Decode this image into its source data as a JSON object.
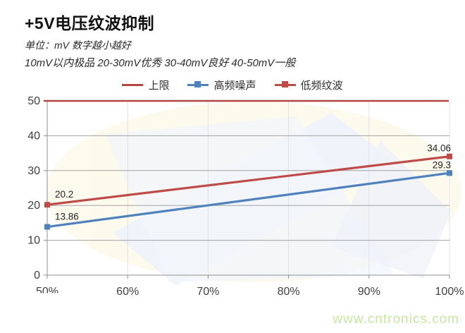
{
  "page": {
    "title": "+5V电压纹波抑制",
    "subtitle_unit": "单位：mV  数字越小越好",
    "subtitle_grades": "10mV以内极品  20-30mV优秀  30-40mV良好  40-50mV一般",
    "watermark": "www.cntronics.com"
  },
  "colors": {
    "limit_red": "#b5433f",
    "series_red": "#be4b48",
    "series_blue": "#4f81bd",
    "gridline": "#a2a2a2",
    "vertical_gridline": "#e0e1e9",
    "axis": "#8f8f8f",
    "tick_text": "#3f3f3f",
    "data_label_text": "#222222",
    "watermark_green": "#c6e6a2"
  },
  "legend": [
    {
      "label": "上限",
      "color": "#b5433f",
      "marker": false
    },
    {
      "label": "高频噪声",
      "color": "#4f81bd",
      "marker": true
    },
    {
      "label": "低频纹波",
      "color": "#be4b48",
      "marker": true
    }
  ],
  "chart_data": {
    "type": "line",
    "title": "+5V电压纹波抑制",
    "xlabel": "",
    "ylabel": "mV",
    "categories": [
      "50%",
      "60%",
      "70%",
      "80%",
      "90%",
      "100%"
    ],
    "x_numeric": [
      50,
      60,
      70,
      80,
      90,
      100
    ],
    "y_ticks": [
      0,
      10,
      20,
      30,
      40,
      50
    ],
    "ylim": [
      0,
      50
    ],
    "grid": true,
    "legend_position": "top",
    "series": [
      {
        "name": "上限",
        "color": "#b5433f",
        "marker": false,
        "x": [
          50,
          100
        ],
        "values": [
          50,
          50
        ],
        "point_labels": [
          "",
          ""
        ]
      },
      {
        "name": "高频噪声",
        "color": "#4f81bd",
        "marker": true,
        "x": [
          50,
          100
        ],
        "values": [
          13.86,
          29.3
        ],
        "point_labels": [
          "13.86",
          "29.3"
        ]
      },
      {
        "name": "低频纹波",
        "color": "#be4b48",
        "marker": true,
        "x": [
          50,
          100
        ],
        "values": [
          20.2,
          34.06
        ],
        "point_labels": [
          "20.2",
          "34.06"
        ]
      }
    ]
  }
}
